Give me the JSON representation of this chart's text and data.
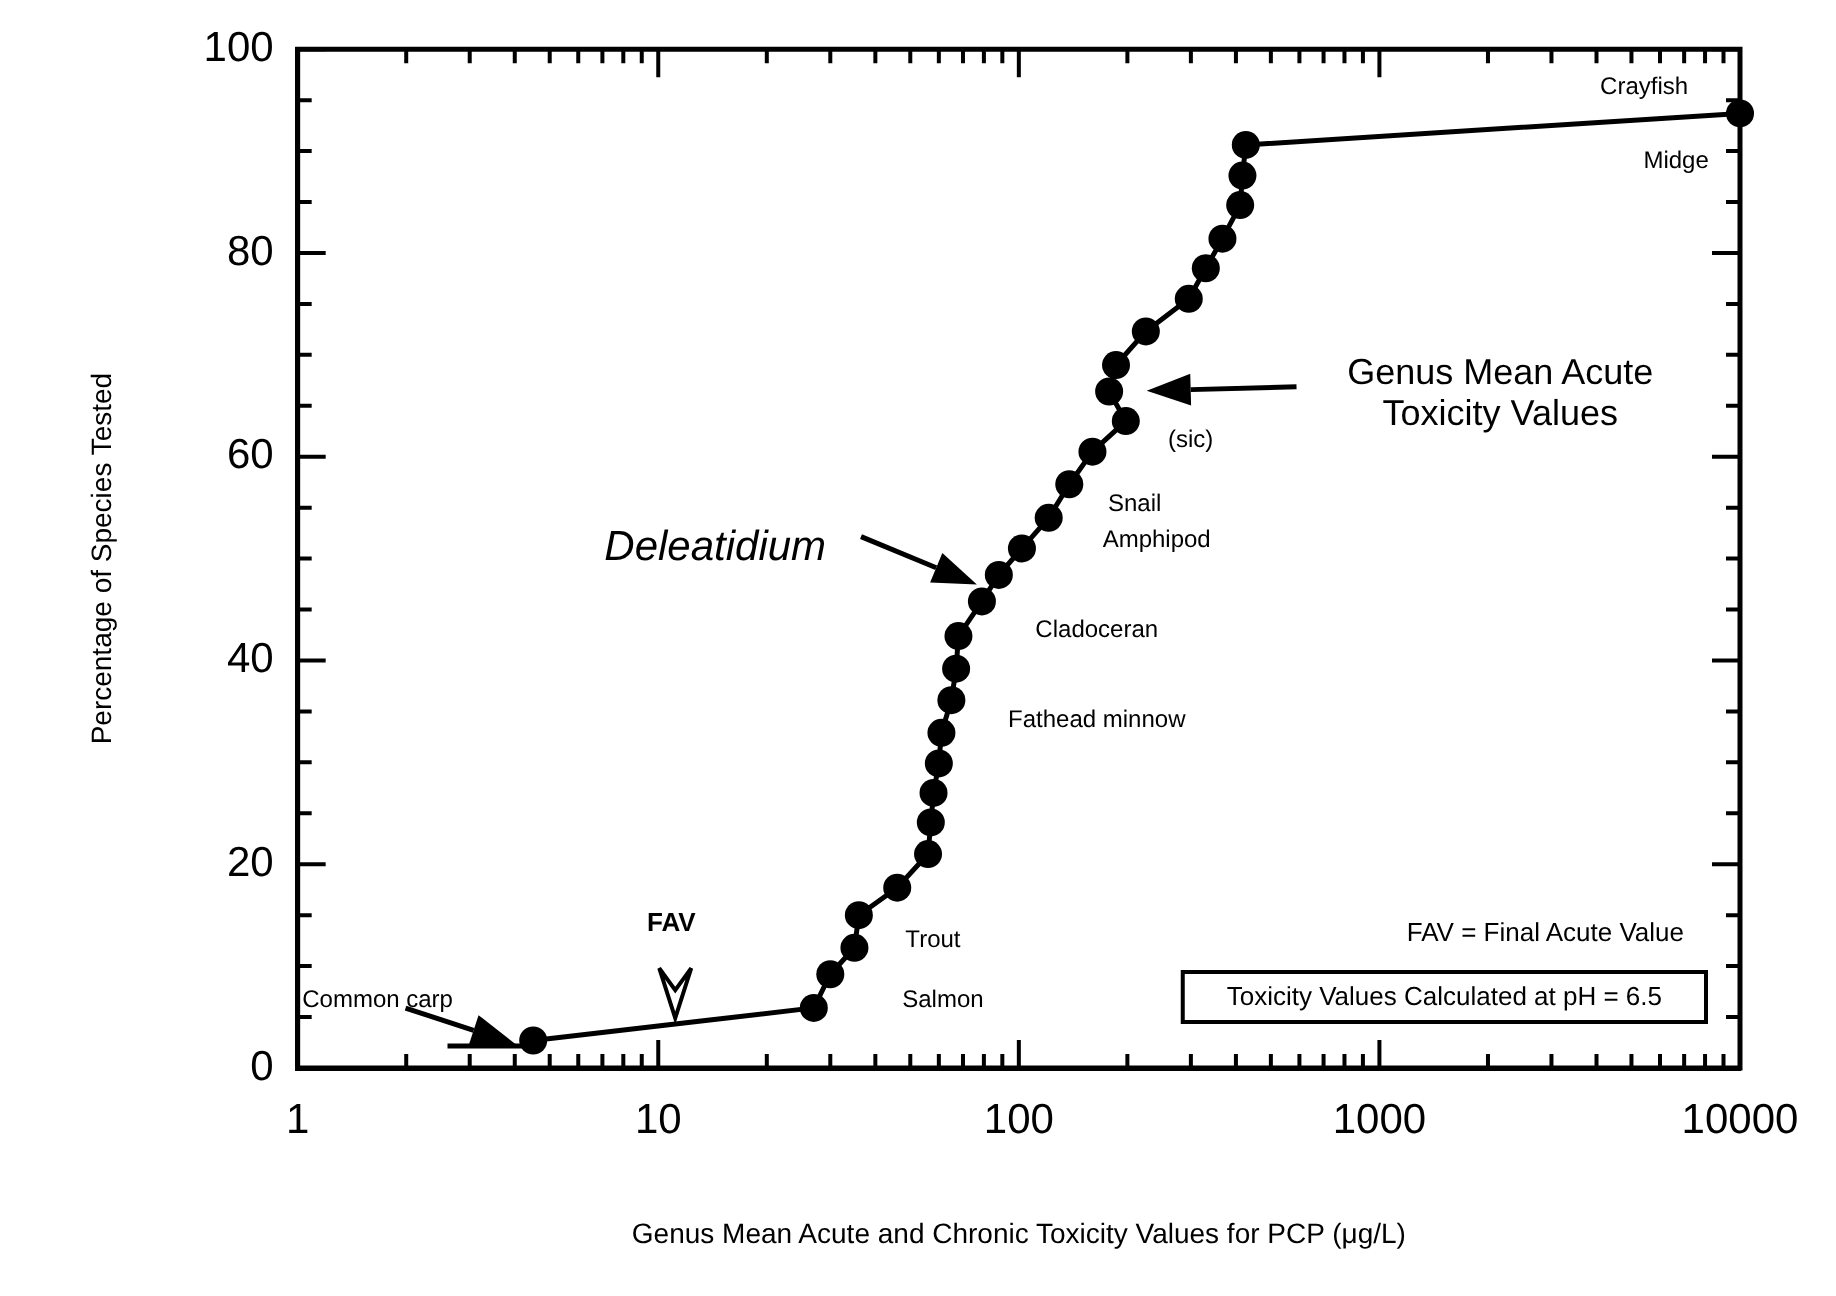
{
  "chart_data": {
    "type": "line",
    "xlabel": "Genus Mean Acute and Chronic Toxicity Values for PCP (μg/L)",
    "ylabel": "Percentage of Species Tested",
    "log": "x",
    "xlim": [
      1,
      10000
    ],
    "ylim": [
      0,
      100
    ],
    "xticks": [
      1,
      {
        "value": 2,
        "label": null
      },
      {
        "value": 3,
        "label": null
      },
      {
        "value": 4,
        "label": null
      },
      {
        "value": 5,
        "label": null
      },
      {
        "value": 6,
        "label": null
      },
      {
        "value": 7,
        "label": null
      },
      {
        "value": 8,
        "label": null
      },
      {
        "value": 9,
        "label": null
      },
      10,
      {
        "value": 20,
        "label": null
      },
      {
        "value": 30,
        "label": null
      },
      {
        "value": 40,
        "label": null
      },
      {
        "value": 50,
        "label": null
      },
      {
        "value": 60,
        "label": null
      },
      {
        "value": 70,
        "label": null
      },
      {
        "value": 80,
        "label": null
      },
      {
        "value": 90,
        "label": null
      },
      100,
      {
        "value": 200,
        "label": null
      },
      {
        "value": 300,
        "label": null
      },
      {
        "value": 400,
        "label": null
      },
      {
        "value": 500,
        "label": null
      },
      {
        "value": 600,
        "label": null
      },
      {
        "value": 700,
        "label": null
      },
      {
        "value": 800,
        "label": null
      },
      {
        "value": 900,
        "label": null
      },
      1000,
      {
        "value": 2000,
        "label": null
      },
      {
        "value": 3000,
        "label": null
      },
      {
        "value": 4000,
        "label": null
      },
      {
        "value": 5000,
        "label": null
      },
      {
        "value": 6000,
        "label": null
      },
      {
        "value": 7000,
        "label": null
      },
      {
        "value": 8000,
        "label": null
      },
      {
        "value": 9000,
        "label": null
      },
      10000
    ],
    "yticks": [
      0,
      {
        "value": 5,
        "label": null
      },
      {
        "value": 10,
        "label": null
      },
      {
        "value": 15,
        "label": null
      },
      20,
      {
        "value": 25,
        "label": null
      },
      {
        "value": 30,
        "label": null
      },
      {
        "value": 35,
        "label": null
      },
      40,
      {
        "value": 45,
        "label": null
      },
      {
        "value": 50,
        "label": null
      },
      {
        "value": 55,
        "label": null
      },
      60,
      {
        "value": 65,
        "label": null
      },
      {
        "value": 70,
        "label": null
      },
      {
        "value": 75,
        "label": null
      },
      80,
      {
        "value": 85,
        "label": null
      },
      {
        "value": 90,
        "label": null
      },
      {
        "value": 95,
        "label": null
      },
      100
    ],
    "grid": false,
    "legend": false,
    "marker": "circle",
    "line_style": "solid",
    "series": [
      {
        "color": "#000000",
        "x": [
          4.5,
          27,
          30,
          35,
          36,
          46,
          56,
          57,
          58,
          60,
          61,
          65,
          67,
          68,
          79,
          88,
          102,
          121,
          138,
          160,
          198,
          178,
          186,
          225,
          296,
          330,
          367,
          411,
          417,
          426,
          10000
        ],
        "values": [
          2.7,
          5.9,
          9.2,
          11.8,
          15,
          17.7,
          21,
          24.1,
          27,
          29.9,
          32.9,
          36.1,
          39.2,
          42.4,
          45.8,
          48.4,
          51,
          54,
          57.3,
          60.5,
          63.5,
          66.4,
          69,
          72.3,
          75.5,
          78.5,
          81.4,
          84.7,
          87.6,
          90.6,
          93.7
        ]
      }
    ],
    "annotations": [
      "Common carp",
      "FAV",
      "Salmon",
      "Trout",
      "Fathead minnow",
      "Cladoceran",
      "Deleatidium",
      "Amphipod",
      "Snail",
      "(sic)",
      "Genus Mean Acute Toxicity Values",
      "Midge",
      "Crayfish",
      "FAV = Final Acute Value",
      "Toxicity Values Calculated at pH = 6.5"
    ]
  }
}
